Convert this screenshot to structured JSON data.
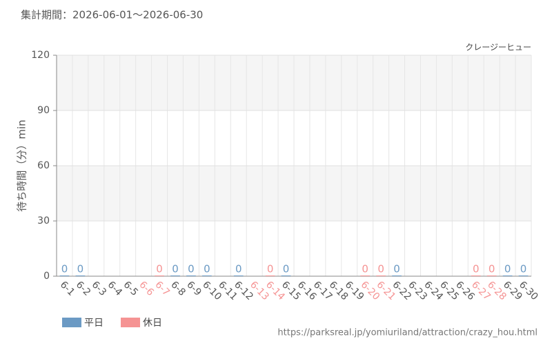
{
  "chart_data": {
    "type": "bar",
    "title": "集計期間：2026-06-01～2026-06-30",
    "subtitle": "クレージーヒュー",
    "y_label": "待ち時間（分）min",
    "source": "https://parksreal.jp/yomiuriland/attraction/crazy_hou.html",
    "categories": [
      "6-1",
      "6-2",
      "6-3",
      "6-4",
      "6-5",
      "6-6",
      "6-7",
      "6-8",
      "6-9",
      "6-10",
      "6-11",
      "6-12",
      "6-13",
      "6-14",
      "6-15",
      "6-16",
      "6-17",
      "6-18",
      "6-19",
      "6-20",
      "6-21",
      "6-22",
      "6-23",
      "6-24",
      "6-25",
      "6-26",
      "6-27",
      "6-28",
      "6-29",
      "6-30"
    ],
    "category_colors": [
      "#555",
      "#555",
      "#555",
      "#555",
      "#555",
      "#f59393",
      "#f59393",
      "#555",
      "#555",
      "#555",
      "#555",
      "#555",
      "#f59393",
      "#f59393",
      "#555",
      "#555",
      "#555",
      "#555",
      "#555",
      "#f59393",
      "#f59393",
      "#555",
      "#555",
      "#555",
      "#555",
      "#555",
      "#f59393",
      "#f59393",
      "#555",
      "#555"
    ],
    "series": [
      {
        "name": "平日",
        "color": "#6b9ac4",
        "values": [
          0,
          0,
          null,
          null,
          null,
          null,
          null,
          0,
          0,
          0,
          null,
          0,
          null,
          null,
          0,
          null,
          null,
          null,
          null,
          null,
          null,
          0,
          null,
          null,
          null,
          null,
          null,
          null,
          0,
          0
        ]
      },
      {
        "name": "休日",
        "color": "#f59393",
        "values": [
          null,
          null,
          null,
          null,
          null,
          null,
          0,
          null,
          null,
          null,
          null,
          null,
          null,
          0,
          null,
          null,
          null,
          null,
          null,
          0,
          0,
          null,
          null,
          null,
          null,
          null,
          0,
          0,
          null,
          null
        ]
      }
    ],
    "ylim": [
      0,
      120
    ],
    "yticks": [
      0,
      30,
      60,
      90,
      120
    ],
    "grid": true
  }
}
